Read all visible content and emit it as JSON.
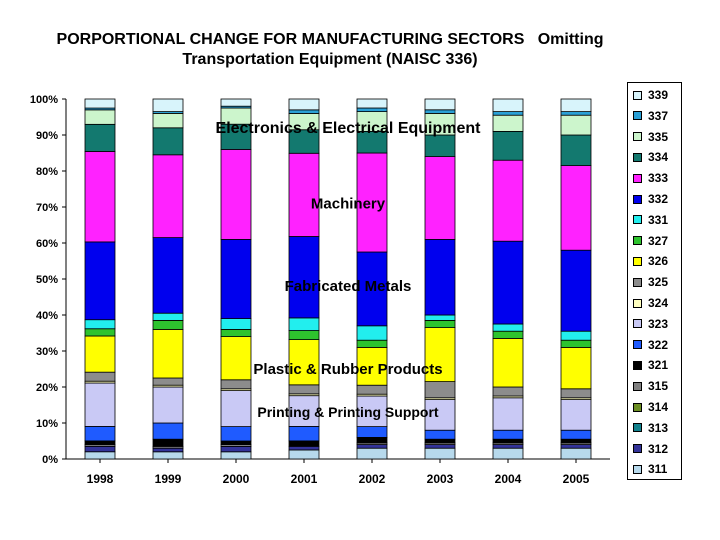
{
  "chart_data": {
    "type": "bar",
    "stacked": true,
    "percent": true,
    "title": "PORPORTIONAL CHANGE FOR MANUFACTURING SECTORS   Omitting",
    "subtitle": "Transportation Equipment (NAISC 336)",
    "categories": [
      "1998",
      "1999",
      "2000",
      "2001",
      "2002",
      "2003",
      "2004",
      "2005"
    ],
    "ylim": [
      0,
      100
    ],
    "yticks": [
      "0%",
      "10%",
      "20%",
      "30%",
      "40%",
      "50%",
      "60%",
      "70%",
      "80%",
      "90%",
      "100%"
    ],
    "legend_position": "right",
    "grid": false,
    "series": [
      {
        "name": "311",
        "color": "#B7D9EC",
        "values": [
          2.0,
          2.0,
          2.0,
          2.5,
          3.0,
          3.0,
          3.0,
          3.0
        ]
      },
      {
        "name": "312",
        "color": "#333399",
        "values": [
          1.5,
          1.0,
          1.5,
          1.0,
          1.0,
          1.0,
          1.0,
          1.0
        ]
      },
      {
        "name": "313",
        "color": "#11818C",
        "values": [
          0.0,
          0.0,
          0.0,
          0.0,
          0.0,
          0.0,
          0.0,
          0.0
        ]
      },
      {
        "name": "314",
        "color": "#6B8E23",
        "values": [
          0.0,
          0.0,
          0.0,
          0.0,
          0.0,
          0.0,
          0.0,
          0.0
        ]
      },
      {
        "name": "315",
        "color": "#808080",
        "values": [
          0.5,
          0.5,
          0.5,
          0.0,
          0.5,
          0.5,
          0.5,
          0.5
        ]
      },
      {
        "name": "321",
        "color": "#000000",
        "values": [
          1.0,
          2.0,
          1.0,
          1.5,
          1.5,
          1.0,
          1.0,
          1.0
        ]
      },
      {
        "name": "322",
        "color": "#1F5BFF",
        "values": [
          4.0,
          4.5,
          4.0,
          4.0,
          3.0,
          2.5,
          2.5,
          2.5
        ]
      },
      {
        "name": "323",
        "color": "#C9C9F5",
        "values": [
          12.0,
          10.0,
          10.0,
          8.5,
          8.5,
          8.5,
          9.0,
          8.5
        ]
      },
      {
        "name": "324",
        "color": "#FFFFC0",
        "values": [
          0.5,
          0.5,
          0.5,
          0.5,
          0.5,
          0.5,
          0.5,
          0.5
        ]
      },
      {
        "name": "325",
        "color": "#8C8C8C",
        "values": [
          2.5,
          2.0,
          2.5,
          2.5,
          2.5,
          4.5,
          2.5,
          2.5
        ]
      },
      {
        "name": "326",
        "color": "#FFFF00",
        "values": [
          10.0,
          13.5,
          12.0,
          12.5,
          10.5,
          15.0,
          13.5,
          11.5
        ]
      },
      {
        "name": "327",
        "color": "#2EC42E",
        "values": [
          2.0,
          2.5,
          2.0,
          2.5,
          2.0,
          2.0,
          2.0,
          2.0
        ]
      },
      {
        "name": "331",
        "color": "#22EEEE",
        "values": [
          2.5,
          2.0,
          3.0,
          3.5,
          4.0,
          1.5,
          2.0,
          2.5
        ]
      },
      {
        "name": "332",
        "color": "#0000EE",
        "values": [
          21.5,
          21.0,
          22.0,
          22.5,
          20.5,
          21.0,
          23.0,
          22.5
        ]
      },
      {
        "name": "333",
        "color": "#FF22FF",
        "values": [
          25.0,
          23.0,
          25.0,
          23.0,
          27.5,
          23.0,
          22.5,
          23.5
        ]
      },
      {
        "name": "334",
        "color": "#13796F",
        "values": [
          7.5,
          7.5,
          7.0,
          6.5,
          6.0,
          6.0,
          8.0,
          8.5
        ]
      },
      {
        "name": "335",
        "color": "#CCF5CC",
        "values": [
          4.0,
          4.0,
          4.5,
          4.5,
          5.5,
          6.0,
          4.5,
          5.5
        ]
      },
      {
        "name": "337",
        "color": "#2AA0D6",
        "values": [
          0.5,
          0.5,
          0.5,
          1.0,
          1.0,
          1.0,
          1.0,
          1.0
        ]
      },
      {
        "name": "339",
        "color": "#D8F4FB",
        "values": [
          2.5,
          3.5,
          2.0,
          3.0,
          2.5,
          3.0,
          3.5,
          3.5
        ]
      }
    ],
    "annotations": [
      {
        "text": "Electronics & Electrical Equipment",
        "at_percent": 92,
        "size": "large"
      },
      {
        "text": "Machinery",
        "at_percent": 71,
        "size": "medium"
      },
      {
        "text": "Fabricated Metals",
        "at_percent": 48,
        "size": "medium"
      },
      {
        "text": "Plastic & Rubber Products",
        "at_percent": 25,
        "size": "medium"
      },
      {
        "text": "Printing & Printing Support",
        "at_percent": 13,
        "size": "small"
      }
    ]
  }
}
